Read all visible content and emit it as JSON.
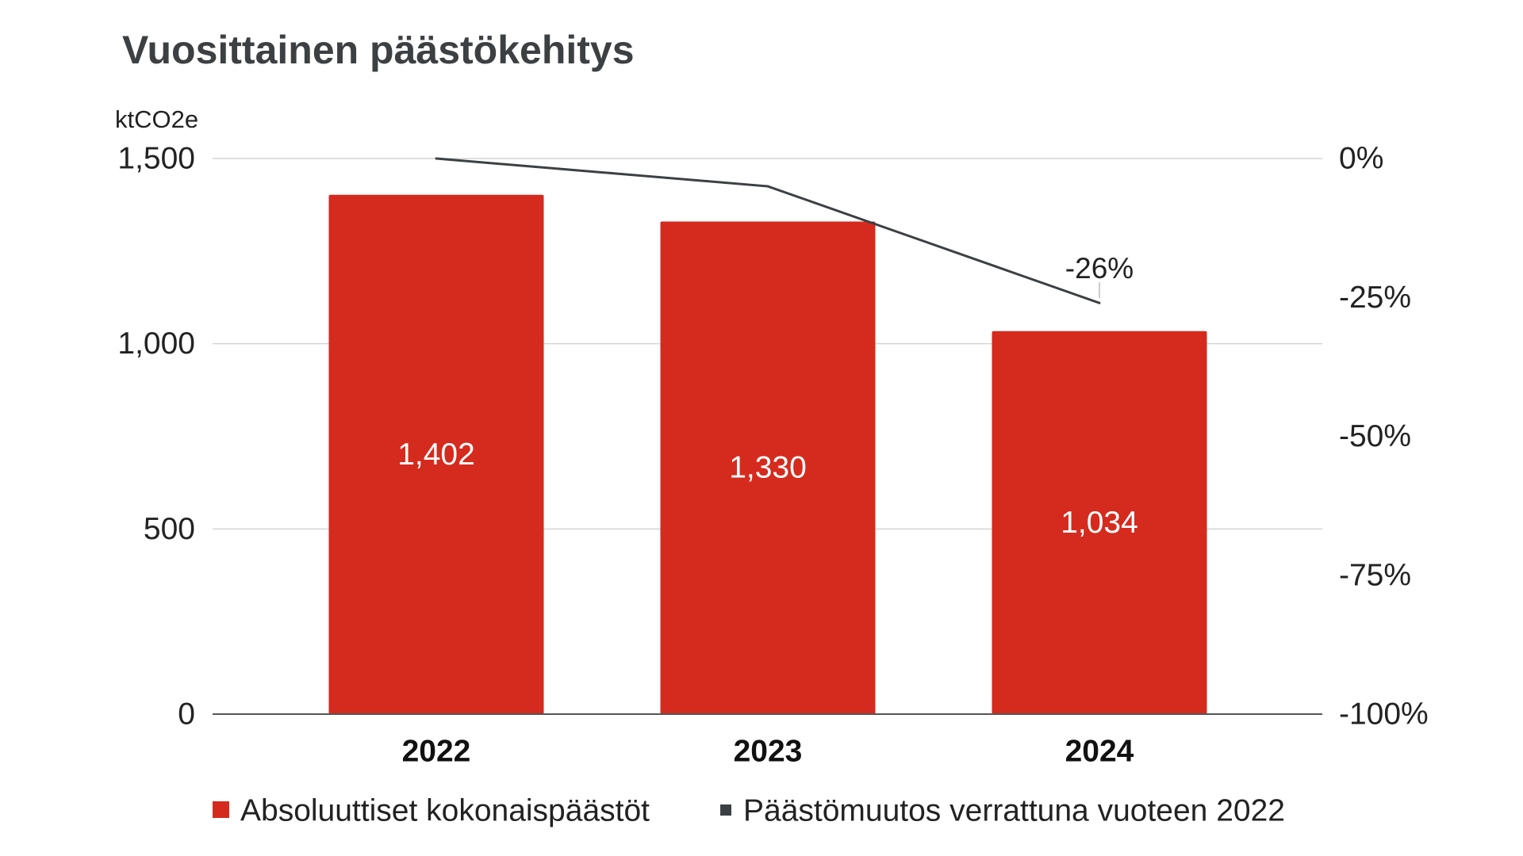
{
  "chart_data": {
    "type": "bar",
    "title": "Vuosittainen päästökehitys",
    "ylabel": "ktCO2e",
    "categories": [
      "2022",
      "2023",
      "2024"
    ],
    "ylim": [
      0,
      1500
    ],
    "y_ticks": [
      {
        "value": 1500,
        "label": "1,500"
      },
      {
        "value": 1000,
        "label": "1,000"
      },
      {
        "value": 500,
        "label": "500"
      },
      {
        "value": 0,
        "label": "0"
      }
    ],
    "y2lim": [
      -100,
      0
    ],
    "y2_ticks": [
      {
        "value": 0,
        "label": "0%"
      },
      {
        "value": -25,
        "label": "-25%"
      },
      {
        "value": -50,
        "label": "-50%"
      },
      {
        "value": -75,
        "label": "-75%"
      },
      {
        "value": -100,
        "label": "-100%"
      }
    ],
    "grid": true,
    "legend_position": "bottom",
    "series": [
      {
        "name": "Absoluuttiset kokonaispäästöt",
        "type": "bar",
        "axis": "left",
        "values": [
          1402,
          1330,
          1034
        ],
        "labels": [
          "1,402",
          "1,330",
          "1,034"
        ],
        "color": "#d52b1e"
      },
      {
        "name": "Päästömuutos verrattuna vuoteen 2022",
        "type": "line",
        "axis": "right",
        "values": [
          0,
          -5,
          -26
        ],
        "point_labels": [
          {
            "index": 2,
            "text": "-26%"
          }
        ],
        "color": "#3c4043"
      }
    ]
  }
}
